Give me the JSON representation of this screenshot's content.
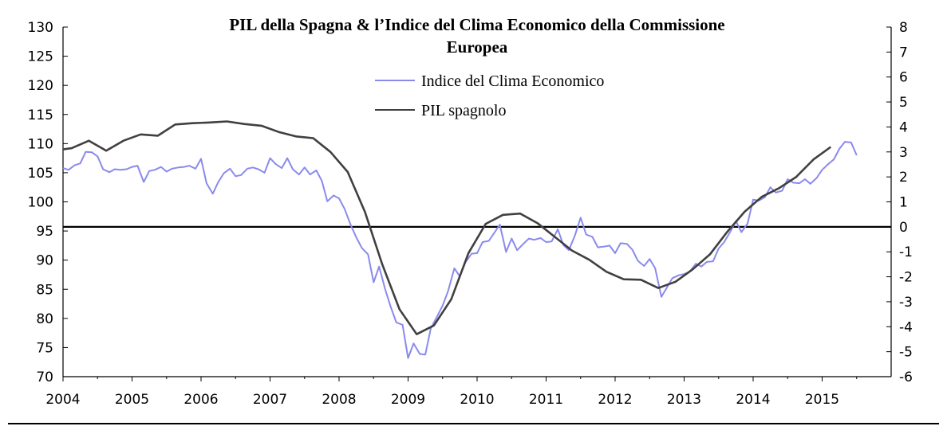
{
  "chart_data": {
    "type": "line",
    "title_lines": [
      "PIL della Spagna & l’Indice  del Clima Economico della Commissione",
      "Europea"
    ],
    "x_ticks": [
      "2004",
      "2005",
      "2006",
      "2007",
      "2008",
      "2009",
      "2010",
      "2011",
      "2012",
      "2013",
      "2014",
      "2015"
    ],
    "xlim": [
      2004,
      2016
    ],
    "left_axis": {
      "ylim": [
        70,
        130
      ],
      "ticks": [
        70,
        75,
        80,
        85,
        90,
        95,
        100,
        105,
        110,
        115,
        120,
        125,
        130
      ]
    },
    "right_axis": {
      "ylim": [
        -6,
        8
      ],
      "ticks": [
        -6,
        -5,
        -4,
        -3,
        -2,
        -1,
        0,
        1,
        2,
        3,
        4,
        5,
        6,
        7,
        8
      ]
    },
    "zero_line_right_axis": 0,
    "legend": {
      "placement": "top-center"
    },
    "series": [
      {
        "name": "Indice del Clima Economico",
        "axis": "left",
        "color": "#8a8aee",
        "x": [
          2004.0,
          2004.08,
          2004.17,
          2004.25,
          2004.33,
          2004.42,
          2004.5,
          2004.58,
          2004.67,
          2004.75,
          2004.83,
          2004.92,
          2005.0,
          2005.08,
          2005.17,
          2005.25,
          2005.33,
          2005.42,
          2005.5,
          2005.58,
          2005.67,
          2005.75,
          2005.83,
          2005.92,
          2006.0,
          2006.08,
          2006.17,
          2006.25,
          2006.33,
          2006.42,
          2006.5,
          2006.58,
          2006.67,
          2006.75,
          2006.83,
          2006.92,
          2007.0,
          2007.08,
          2007.17,
          2007.25,
          2007.33,
          2007.42,
          2007.5,
          2007.58,
          2007.67,
          2007.75,
          2007.83,
          2007.92,
          2008.0,
          2008.08,
          2008.17,
          2008.25,
          2008.33,
          2008.42,
          2008.5,
          2008.58,
          2008.67,
          2008.75,
          2008.83,
          2008.92,
          2009.0,
          2009.08,
          2009.17,
          2009.25,
          2009.33,
          2009.42,
          2009.5,
          2009.58,
          2009.67,
          2009.75,
          2009.83,
          2009.92,
          2010.0,
          2010.08,
          2010.17,
          2010.25,
          2010.33,
          2010.42,
          2010.5,
          2010.58,
          2010.67,
          2010.75,
          2010.83,
          2010.92,
          2011.0,
          2011.08,
          2011.17,
          2011.25,
          2011.33,
          2011.42,
          2011.5,
          2011.58,
          2011.67,
          2011.75,
          2011.83,
          2011.92,
          2012.0,
          2012.08,
          2012.17,
          2012.25,
          2012.33,
          2012.42,
          2012.5,
          2012.58,
          2012.67,
          2012.75,
          2012.83,
          2012.92,
          2013.0,
          2013.08,
          2013.17,
          2013.25,
          2013.33,
          2013.42,
          2013.5,
          2013.58,
          2013.67,
          2013.75,
          2013.83,
          2013.92,
          2014.0,
          2014.08,
          2014.17,
          2014.25,
          2014.33,
          2014.42,
          2014.5,
          2014.58,
          2014.67,
          2014.75,
          2014.83,
          2014.92,
          2015.0,
          2015.08,
          2015.17,
          2015.25,
          2015.33,
          2015.42,
          2015.5
        ],
        "values": [
          105.8,
          105.5,
          106.3,
          106.6,
          108.6,
          108.5,
          107.8,
          105.6,
          105.1,
          105.6,
          105.5,
          105.6,
          106.0,
          106.2,
          103.4,
          105.3,
          105.5,
          106.0,
          105.2,
          105.7,
          105.9,
          106.0,
          106.2,
          105.7,
          107.4,
          103.2,
          101.4,
          103.4,
          104.9,
          105.7,
          104.4,
          104.6,
          105.7,
          105.9,
          105.6,
          105.0,
          107.5,
          106.5,
          105.8,
          107.5,
          105.6,
          104.7,
          105.9,
          104.7,
          105.4,
          103.6,
          100.1,
          101.1,
          100.6,
          98.8,
          96.0,
          93.9,
          92.1,
          91.0,
          86.2,
          88.9,
          84.9,
          81.9,
          79.3,
          78.9,
          73.2,
          75.7,
          73.9,
          73.8,
          78.3,
          80.3,
          82.2,
          84.7,
          88.6,
          87.2,
          89.6,
          91.1,
          91.2,
          93.1,
          93.3,
          94.7,
          96.1,
          91.4,
          93.7,
          91.7,
          92.8,
          93.7,
          93.5,
          93.8,
          93.1,
          93.2,
          95.3,
          92.6,
          91.7,
          94.3,
          97.3,
          94.4,
          94.0,
          92.2,
          92.3,
          92.5,
          91.2,
          92.9,
          92.8,
          91.8,
          89.9,
          89.0,
          90.2,
          88.6,
          83.7,
          85.3,
          86.9,
          87.4,
          87.6,
          88.0,
          89.4,
          88.9,
          89.7,
          89.8,
          92.0,
          93.1,
          94.9,
          96.7,
          94.8,
          96.3,
          100.4,
          100.2,
          100.8,
          102.5,
          101.6,
          101.9,
          103.9,
          103.3,
          103.2,
          103.9,
          103.1,
          104.1,
          105.5,
          106.4,
          107.3,
          109.1,
          110.3,
          110.2,
          108.0
        ]
      },
      {
        "name": "PIL spagnolo",
        "axis": "right",
        "color": "#404040",
        "x": [
          2004.0,
          2004.125,
          2004.375,
          2004.625,
          2004.875,
          2005.125,
          2005.375,
          2005.625,
          2005.875,
          2006.125,
          2006.375,
          2006.625,
          2006.875,
          2007.125,
          2007.375,
          2007.625,
          2007.875,
          2008.125,
          2008.375,
          2008.625,
          2008.875,
          2009.125,
          2009.375,
          2009.625,
          2009.875,
          2010.125,
          2010.375,
          2010.625,
          2010.875,
          2011.125,
          2011.375,
          2011.625,
          2011.875,
          2012.125,
          2012.375,
          2012.625,
          2012.875,
          2013.125,
          2013.375,
          2013.625,
          2013.875,
          2014.125,
          2014.375,
          2014.625,
          2014.875,
          2015.125
        ],
        "values": [
          3.1,
          3.15,
          3.45,
          3.05,
          3.45,
          3.7,
          3.65,
          4.1,
          4.15,
          4.18,
          4.22,
          4.12,
          4.05,
          3.8,
          3.62,
          3.55,
          3.0,
          2.2,
          0.6,
          -1.5,
          -3.3,
          -4.3,
          -3.95,
          -2.9,
          -1.05,
          0.12,
          0.48,
          0.53,
          0.15,
          -0.4,
          -0.95,
          -1.32,
          -1.8,
          -2.1,
          -2.12,
          -2.45,
          -2.2,
          -1.7,
          -1.1,
          -0.2,
          0.6,
          1.2,
          1.55,
          2.0,
          2.7,
          3.2
        ]
      }
    ]
  }
}
